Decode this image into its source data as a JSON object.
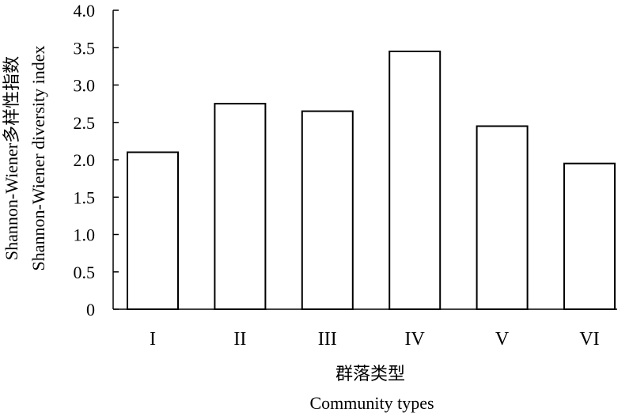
{
  "chart_data": {
    "type": "bar",
    "categories": [
      "I",
      "II",
      "III",
      "IV",
      "V",
      "VI"
    ],
    "values": [
      2.1,
      2.75,
      2.65,
      3.45,
      2.45,
      1.95
    ],
    "ylim": [
      0,
      4.0
    ],
    "yticks": [
      "0",
      "0.5",
      "1.0",
      "1.5",
      "2.0",
      "2.5",
      "3.0",
      "3.5",
      "4.0"
    ],
    "ytick_values": [
      0,
      0.5,
      1.0,
      1.5,
      2.0,
      2.5,
      3.0,
      3.5,
      4.0
    ],
    "ylabel_line1": "Shannon-Wiener多样性指数",
    "ylabel_line2": "Shannon-Wiener diversity index",
    "xlabel_line1": "群落类型",
    "xlabel_line2": "Community types",
    "grid": false,
    "bar_fill": "#ffffff",
    "bar_stroke": "#000000"
  }
}
